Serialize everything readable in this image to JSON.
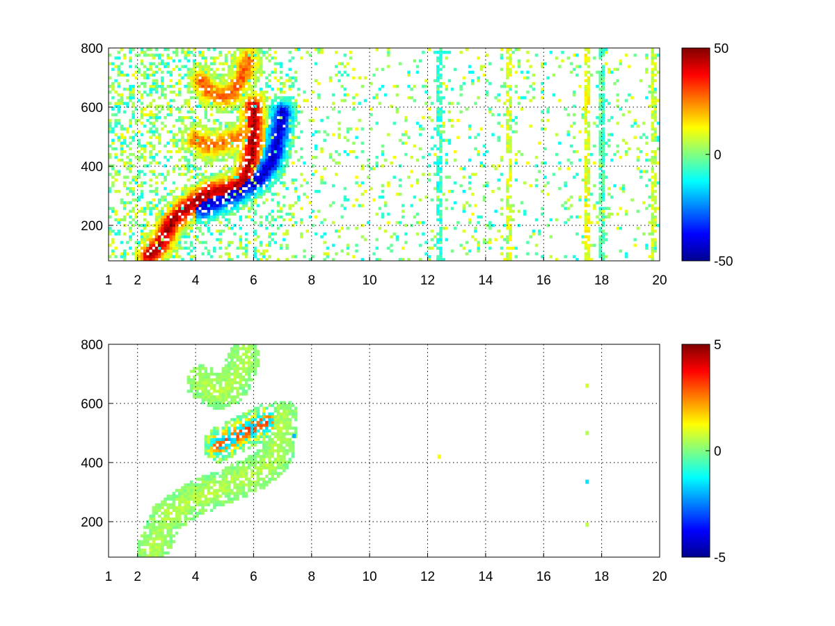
{
  "chart_data": [
    {
      "type": "heatmap",
      "title": "",
      "xlabel": "",
      "ylabel": "",
      "xlim": [
        1,
        20
      ],
      "ylim": [
        80,
        800
      ],
      "x_ticks": [
        "1",
        "2",
        "4",
        "6",
        "8",
        "10",
        "12",
        "14",
        "16",
        "18",
        "20"
      ],
      "x_tick_values": [
        1,
        2,
        4,
        6,
        8,
        10,
        12,
        14,
        16,
        18,
        20
      ],
      "y_ticks": [
        "200",
        "400",
        "600",
        "800"
      ],
      "y_tick_values": [
        200,
        400,
        600,
        800
      ],
      "grid": true,
      "colormap": "jet",
      "colorbar": {
        "range": [
          -50,
          50
        ],
        "ticks": [
          "50",
          "0",
          "-50"
        ],
        "tick_values": [
          50,
          0,
          -50
        ]
      },
      "features": [
        {
          "desc": "positive ridge",
          "points": [
            [
              2.4,
              100
            ],
            [
              2.8,
              140
            ],
            [
              3.2,
              215
            ],
            [
              3.6,
              250
            ],
            [
              4.0,
              280
            ],
            [
              4.5,
              310
            ],
            [
              5.0,
              320
            ],
            [
              5.4,
              330
            ],
            [
              5.7,
              360
            ],
            [
              5.9,
              430
            ],
            [
              6.0,
              500
            ],
            [
              6.0,
              560
            ],
            [
              6.0,
              600
            ]
          ],
          "value": 45
        },
        {
          "desc": "negative ridge",
          "points": [
            [
              4.2,
              260
            ],
            [
              4.7,
              280
            ],
            [
              5.2,
              300
            ],
            [
              5.7,
              330
            ],
            [
              6.2,
              360
            ],
            [
              6.6,
              410
            ],
            [
              6.8,
              470
            ],
            [
              6.9,
              530
            ],
            [
              7.0,
              580
            ]
          ],
          "value": -42
        },
        {
          "desc": "upper positive loop",
          "points": [
            [
              4.2,
              690
            ],
            [
              4.5,
              650
            ],
            [
              4.9,
              635
            ],
            [
              5.3,
              650
            ],
            [
              5.6,
              700
            ],
            [
              5.8,
              760
            ]
          ],
          "value": 28
        },
        {
          "desc": "middle positive band",
          "points": [
            [
              4.0,
              490
            ],
            [
              4.5,
              470
            ],
            [
              5.0,
              480
            ],
            [
              5.5,
              500
            ],
            [
              5.8,
              520
            ]
          ],
          "value": 26
        }
      ],
      "noise_columns_x": [
        12.4,
        14.8,
        17.5,
        18.0,
        19.8
      ],
      "noise_column_values": [
        -8,
        8,
        10,
        -5,
        6
      ]
    },
    {
      "type": "heatmap",
      "title": "",
      "xlabel": "",
      "ylabel": "",
      "xlim": [
        1,
        20
      ],
      "ylim": [
        80,
        800
      ],
      "x_ticks": [
        "1",
        "2",
        "4",
        "6",
        "8",
        "10",
        "12",
        "14",
        "16",
        "18",
        "20"
      ],
      "x_tick_values": [
        1,
        2,
        4,
        6,
        8,
        10,
        12,
        14,
        16,
        18,
        20
      ],
      "y_ticks": [
        "200",
        "400",
        "600",
        "800"
      ],
      "y_tick_values": [
        200,
        400,
        600,
        800
      ],
      "grid": true,
      "colormap": "jet",
      "colorbar": {
        "range": [
          -5,
          5
        ],
        "ticks": [
          "5",
          "0",
          "-5"
        ],
        "tick_values": [
          5,
          0,
          -5
        ]
      },
      "features": [
        {
          "desc": "main near-zero region",
          "points": [
            [
              2.5,
              100
            ],
            [
              3.0,
              215
            ],
            [
              4.0,
              280
            ],
            [
              5.0,
              320
            ],
            [
              6.0,
              360
            ],
            [
              6.8,
              420
            ],
            [
              7.0,
              550
            ]
          ],
          "value": 0.5
        },
        {
          "desc": "upper branch",
          "points": [
            [
              4.2,
              670
            ],
            [
              4.8,
              640
            ],
            [
              5.3,
              660
            ],
            [
              5.7,
              760
            ]
          ],
          "value": 0.5
        },
        {
          "desc": "hotspot cluster",
          "points": [
            [
              4.8,
              460
            ],
            [
              5.2,
              480
            ],
            [
              5.6,
              500
            ],
            [
              6.0,
              520
            ],
            [
              6.5,
              540
            ]
          ],
          "value": 3
        }
      ],
      "isolated_points": [
        [
          12.4,
          420,
          1.2
        ],
        [
          17.5,
          660,
          0.8
        ],
        [
          17.5,
          500,
          0.5
        ],
        [
          17.5,
          335,
          -1.5
        ],
        [
          17.5,
          190,
          0.6
        ],
        [
          7.4,
          490,
          -2
        ]
      ]
    }
  ]
}
